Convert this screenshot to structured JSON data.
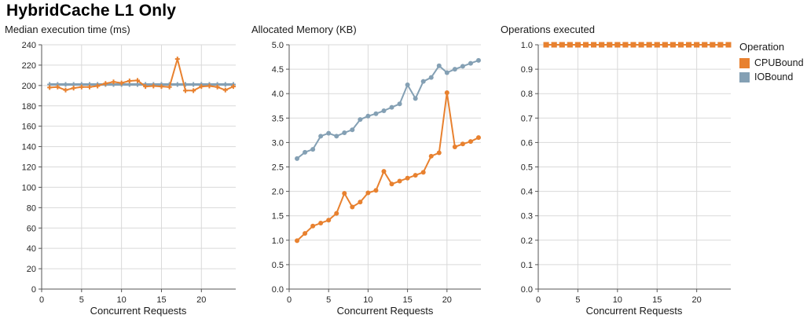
{
  "page_title": "HybridCache L1 Only",
  "colors": {
    "cpubound": "#e8812f",
    "iobound": "#84a0b4",
    "grid": "#d9d9d9",
    "axis": "#555555",
    "tick_label": "#262626"
  },
  "legend": {
    "title": "Operation",
    "entries": [
      {
        "label": "CPUBound",
        "color": "#e8812f"
      },
      {
        "label": "IOBound",
        "color": "#84a0b4"
      }
    ]
  },
  "chart_data": [
    {
      "type": "line",
      "title": "Median execution time (ms)",
      "xlabel": "Concurrent Requests",
      "ylabel": "",
      "marker": "plus",
      "grid": true,
      "xlim": [
        0,
        24.3
      ],
      "ylim": [
        0,
        240
      ],
      "xticks": {
        "values": [
          0,
          5,
          10,
          15,
          20
        ],
        "labels": [
          "0",
          "5",
          "10",
          "15",
          "20"
        ]
      },
      "yticks": {
        "values": [
          0,
          20,
          40,
          60,
          80,
          100,
          120,
          140,
          160,
          180,
          200,
          220,
          240
        ],
        "labels": [
          "0",
          "20",
          "40",
          "60",
          "80",
          "100",
          "120",
          "140",
          "160",
          "180",
          "200",
          "220",
          "240"
        ]
      },
      "x": [
        1,
        2,
        3,
        4,
        5,
        6,
        7,
        8,
        9,
        10,
        11,
        12,
        13,
        14,
        15,
        16,
        17,
        18,
        19,
        20,
        21,
        22,
        23,
        24
      ],
      "series": [
        {
          "name": "CPUBound",
          "color": "#e8812f",
          "width": 2,
          "values": [
            198,
            198.5,
            195.5,
            197.5,
            198.5,
            198.5,
            199.5,
            202,
            203.5,
            202.5,
            204.5,
            205,
            199,
            199.5,
            199,
            198.5,
            226,
            195,
            195,
            199,
            199.5,
            198.5,
            195.5,
            199
          ]
        },
        {
          "name": "IOBound",
          "color": "#84a0b4",
          "width": 3,
          "values": [
            201,
            201,
            201,
            201,
            201,
            201,
            201,
            201,
            201,
            201,
            201,
            201,
            201,
            201,
            201,
            201,
            201,
            201,
            201,
            201,
            201,
            201,
            201,
            201
          ]
        }
      ]
    },
    {
      "type": "line",
      "title": "Allocated Memory (KB)",
      "xlabel": "Concurrent Requests",
      "ylabel": "",
      "marker": "circle",
      "grid": true,
      "xlim": [
        0,
        24.3
      ],
      "ylim": [
        0,
        5
      ],
      "xticks": {
        "values": [
          0,
          5,
          10,
          15,
          20
        ],
        "labels": [
          "0",
          "5",
          "10",
          "15",
          "20"
        ]
      },
      "yticks": {
        "values": [
          0,
          0.5,
          1,
          1.5,
          2,
          2.5,
          3,
          3.5,
          4,
          4.5,
          5
        ],
        "labels": [
          "0.0",
          "0.5",
          "1.0",
          "1.5",
          "2.0",
          "2.5",
          "3.0",
          "3.5",
          "4.0",
          "4.5",
          "5.0"
        ]
      },
      "x": [
        1,
        2,
        3,
        4,
        5,
        6,
        7,
        8,
        9,
        10,
        11,
        12,
        13,
        14,
        15,
        16,
        17,
        18,
        19,
        20,
        21,
        22,
        23,
        24
      ],
      "series": [
        {
          "name": "CPUBound",
          "color": "#e8812f",
          "width": 2,
          "values": [
            0.99,
            1.14,
            1.29,
            1.35,
            1.41,
            1.55,
            1.96,
            1.68,
            1.78,
            1.97,
            2.02,
            2.41,
            2.15,
            2.21,
            2.27,
            2.33,
            2.39,
            2.72,
            2.79,
            4.02,
            2.91,
            2.97,
            3.02,
            3.1
          ]
        },
        {
          "name": "IOBound",
          "color": "#84a0b4",
          "width": 2,
          "values": [
            2.67,
            2.8,
            2.86,
            3.13,
            3.19,
            3.13,
            3.2,
            3.26,
            3.47,
            3.54,
            3.59,
            3.65,
            3.72,
            3.79,
            4.18,
            3.9,
            4.25,
            4.33,
            4.57,
            4.43,
            4.5,
            4.56,
            4.62,
            4.68
          ]
        }
      ]
    },
    {
      "type": "line",
      "title": "Operations executed",
      "xlabel": "Concurrent Requests",
      "ylabel": "",
      "marker": "square",
      "grid": true,
      "xlim": [
        0,
        24.3
      ],
      "ylim": [
        0,
        1
      ],
      "xticks": {
        "values": [
          0,
          5,
          10,
          15,
          20
        ],
        "labels": [
          "0",
          "5",
          "10",
          "15",
          "20"
        ]
      },
      "yticks": {
        "values": [
          0,
          0.1,
          0.2,
          0.3,
          0.4,
          0.5,
          0.6,
          0.7,
          0.8,
          0.9,
          1.0
        ],
        "labels": [
          "0.0",
          "0.1",
          "0.2",
          "0.3",
          "0.4",
          "0.5",
          "0.6",
          "0.7",
          "0.8",
          "0.9",
          "1.0"
        ]
      },
      "x": [
        1,
        2,
        3,
        4,
        5,
        6,
        7,
        8,
        9,
        10,
        11,
        12,
        13,
        14,
        15,
        16,
        17,
        18,
        19,
        20,
        21,
        22,
        23,
        24
      ],
      "series": [
        {
          "name": "CPUBound",
          "color": "#e8812f",
          "width": 2,
          "values": [
            1,
            1,
            1,
            1,
            1,
            1,
            1,
            1,
            1,
            1,
            1,
            1,
            1,
            1,
            1,
            1,
            1,
            1,
            1,
            1,
            1,
            1,
            1,
            1
          ]
        },
        {
          "name": "IOBound",
          "color": "#84a0b4",
          "width": 2,
          "values": [
            1,
            1,
            1,
            1,
            1,
            1,
            1,
            1,
            1,
            1,
            1,
            1,
            1,
            1,
            1,
            1,
            1,
            1,
            1,
            1,
            1,
            1,
            1,
            1
          ]
        }
      ]
    }
  ]
}
